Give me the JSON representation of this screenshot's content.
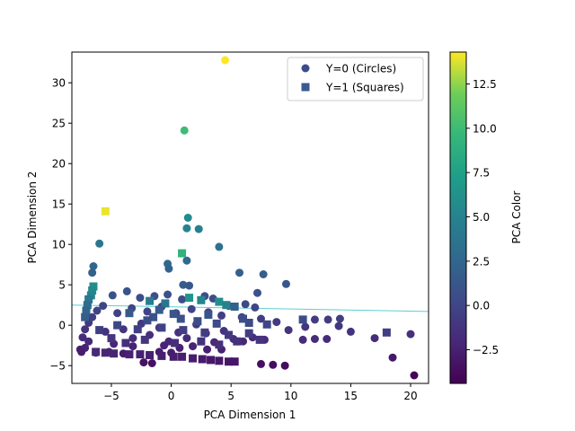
{
  "chart_data": {
    "type": "scatter",
    "title": "",
    "xlabel": "PCA Dimension 1",
    "ylabel": "PCA Dimension 2",
    "xlim": [
      -8.3,
      21.5
    ],
    "ylim": [
      -7.2,
      33.8
    ],
    "xticks": [
      -5,
      0,
      5,
      10,
      15,
      20
    ],
    "yticks": [
      -5,
      0,
      5,
      10,
      15,
      20,
      25,
      30
    ],
    "xtick_labels": [
      "−5",
      "0",
      "5",
      "10",
      "15",
      "20"
    ],
    "ytick_labels": [
      "−5",
      "0",
      "5",
      "10",
      "15",
      "20",
      "25",
      "30"
    ],
    "colorbar": {
      "label": "PCA Color",
      "range": [
        -4.4,
        14.3
      ],
      "ticks": [
        -2.5,
        0,
        2.5,
        5,
        7.5,
        10,
        12.5
      ],
      "tick_labels": [
        "−2.5",
        "0.0",
        "2.5",
        "5.0",
        "7.5",
        "10.0",
        "12.5"
      ]
    },
    "legend": {
      "placement": "top-right",
      "entries": [
        {
          "label": "Y=0 (Circles)",
          "marker": "circle",
          "color": "#3b4c8c"
        },
        {
          "label": "Y=1 (Squares)",
          "marker": "square",
          "color": "#3b5a91"
        }
      ]
    },
    "trend_line": {
      "color": "#5ecfd0",
      "points": [
        [
          -8.3,
          2.5
        ],
        [
          21.5,
          1.7
        ]
      ]
    },
    "series": [
      {
        "name": "Y=0 (Circles)",
        "marker": "circle",
        "points": [
          [
            4.5,
            32.8,
            14.3
          ],
          [
            1.1,
            24.1,
            10.0
          ],
          [
            1.4,
            13.3,
            5.8
          ],
          [
            1.3,
            12.0,
            5.0
          ],
          [
            2.3,
            11.9,
            4.8
          ],
          [
            -6.0,
            10.1,
            3.8
          ],
          [
            4.0,
            9.7,
            3.5
          ],
          [
            -6.5,
            7.3,
            2.4
          ],
          [
            -6.6,
            6.5,
            2.0
          ],
          [
            -0.3,
            7.6,
            2.6
          ],
          [
            -0.2,
            7.0,
            2.2
          ],
          [
            1.3,
            8.0,
            2.8
          ],
          [
            5.7,
            6.5,
            2.0
          ],
          [
            7.7,
            6.3,
            1.8
          ],
          [
            9.6,
            5.1,
            1.2
          ],
          [
            7.2,
            4.0,
            0.9
          ],
          [
            1.0,
            5.0,
            1.6
          ],
          [
            1.5,
            4.9,
            1.4
          ],
          [
            -4.9,
            3.7,
            0.8
          ],
          [
            -3.7,
            4.2,
            1.0
          ],
          [
            -2.6,
            3.4,
            0.6
          ],
          [
            -1.4,
            3.6,
            0.7
          ],
          [
            -0.3,
            3.8,
            0.8
          ],
          [
            0.9,
            3.2,
            0.5
          ],
          [
            2.8,
            3.6,
            0.6
          ],
          [
            3.5,
            3.3,
            0.5
          ],
          [
            4.8,
            2.4,
            0.1
          ],
          [
            6.2,
            2.6,
            0.2
          ],
          [
            7.0,
            2.2,
            0.0
          ],
          [
            -6.2,
            1.8,
            -0.2
          ],
          [
            -5.7,
            2.4,
            0.0
          ],
          [
            -4.5,
            1.5,
            -0.3
          ],
          [
            -3.3,
            2.1,
            -0.1
          ],
          [
            -2.0,
            1.7,
            -0.2
          ],
          [
            -0.8,
            2.3,
            0.0
          ],
          [
            0.4,
            1.5,
            -0.3
          ],
          [
            1.7,
            2.0,
            -0.1
          ],
          [
            3.1,
            1.6,
            -0.2
          ],
          [
            4.2,
            1.2,
            -0.4
          ],
          [
            5.9,
            1.0,
            -0.5
          ],
          [
            7.5,
            0.8,
            -0.6
          ],
          [
            8.8,
            0.4,
            -0.8
          ],
          [
            9.8,
            -0.6,
            -1.2
          ],
          [
            11.2,
            -0.2,
            -1.0
          ],
          [
            12.0,
            0.7,
            -0.6
          ],
          [
            13.1,
            0.7,
            -0.6
          ],
          [
            14.1,
            0.8,
            -0.5
          ],
          [
            14.0,
            -0.1,
            -1.0
          ],
          [
            15.0,
            -0.8,
            -1.3
          ],
          [
            17.0,
            -1.6,
            -1.7
          ],
          [
            20.0,
            -1.1,
            -1.5
          ],
          [
            18.5,
            -4.0,
            -3.0
          ],
          [
            20.3,
            -6.2,
            -4.2
          ],
          [
            11.0,
            -1.8,
            -1.8
          ],
          [
            12.0,
            -1.7,
            -1.8
          ],
          [
            13.0,
            -1.7,
            -1.8
          ],
          [
            7.5,
            -4.8,
            -3.5
          ],
          [
            8.5,
            -4.9,
            -3.6
          ],
          [
            9.5,
            -5.0,
            -3.7
          ],
          [
            6.0,
            -2.0,
            -2.0
          ],
          [
            6.8,
            -1.5,
            -1.7
          ],
          [
            7.8,
            -1.8,
            -1.8
          ],
          [
            -7.2,
            -2.8,
            -2.4
          ],
          [
            -7.4,
            -1.5,
            -1.7
          ],
          [
            -7.2,
            -0.5,
            -1.2
          ],
          [
            -6.9,
            0.3,
            -0.8
          ],
          [
            -6.6,
            1.0,
            -0.5
          ],
          [
            -6.9,
            -2.0,
            -2.0
          ],
          [
            -5.5,
            -0.8,
            -1.3
          ],
          [
            -4.8,
            -2.3,
            -2.1
          ],
          [
            -4.0,
            -0.5,
            -1.2
          ],
          [
            -3.2,
            -1.6,
            -1.7
          ],
          [
            -2.5,
            0.2,
            -0.9
          ],
          [
            -1.8,
            -1.2,
            -1.5
          ],
          [
            -1.0,
            -0.3,
            -1.1
          ],
          [
            -0.2,
            -2.0,
            -2.0
          ],
          [
            0.6,
            -0.9,
            -1.4
          ],
          [
            1.3,
            -1.6,
            -1.7
          ],
          [
            2.1,
            0.1,
            -0.9
          ],
          [
            2.9,
            -1.0,
            -1.5
          ],
          [
            3.6,
            -2.1,
            -2.0
          ],
          [
            4.4,
            -0.7,
            -1.3
          ],
          [
            5.2,
            -1.7,
            -1.8
          ],
          [
            -2.3,
            -4.6,
            -3.4
          ],
          [
            -1.6,
            -4.7,
            -3.5
          ],
          [
            -1.0,
            -3.3,
            -2.7
          ],
          [
            0.0,
            -3.4,
            -2.7
          ],
          [
            -4.0,
            -3.5,
            -2.8
          ],
          [
            -5.2,
            -3.3,
            -2.7
          ],
          [
            -6.3,
            -3.4,
            -2.7
          ],
          [
            -3.2,
            -2.6,
            -2.3
          ],
          [
            -0.6,
            -2.5,
            -2.3
          ],
          [
            0.7,
            -2.8,
            -2.4
          ],
          [
            1.8,
            -2.6,
            -2.3
          ],
          [
            3.0,
            -3.0,
            -2.5
          ],
          [
            4.2,
            -3.0,
            -2.5
          ],
          [
            -7.6,
            -3.0,
            -2.5
          ],
          [
            -7.5,
            -3.3,
            -2.7
          ]
        ]
      },
      {
        "name": "Y=1 (Squares)",
        "marker": "square",
        "points": [
          [
            -5.5,
            14.1,
            14.0
          ],
          [
            0.9,
            8.9,
            9.2
          ],
          [
            -6.5,
            4.8,
            6.0
          ],
          [
            -6.6,
            4.3,
            5.6
          ],
          [
            -6.7,
            3.7,
            5.2
          ],
          [
            1.5,
            3.4,
            6.5
          ],
          [
            2.5,
            3.1,
            5.3
          ],
          [
            4.0,
            2.9,
            6.0
          ],
          [
            4.6,
            2.5,
            5.0
          ],
          [
            -1.8,
            3.0,
            4.5
          ],
          [
            -0.5,
            2.7,
            3.8
          ],
          [
            -6.9,
            3.2,
            4.0
          ],
          [
            -7.0,
            2.5,
            3.0
          ],
          [
            -7.1,
            1.8,
            2.4
          ],
          [
            -7.2,
            1.0,
            1.8
          ],
          [
            5.3,
            2.3,
            2.2
          ],
          [
            -3.5,
            1.5,
            1.5
          ],
          [
            -1.5,
            1.0,
            1.0
          ],
          [
            0.8,
            0.8,
            0.8
          ],
          [
            2.2,
            0.5,
            0.5
          ],
          [
            3.8,
            0.2,
            0.3
          ],
          [
            6.5,
            0.3,
            0.2
          ],
          [
            8.0,
            0.1,
            0.0
          ],
          [
            11.0,
            0.7,
            0.4
          ],
          [
            18.0,
            -0.9,
            -0.5
          ],
          [
            -4.5,
            0.0,
            0.0
          ],
          [
            -2.8,
            -0.5,
            -0.4
          ],
          [
            -0.8,
            -0.3,
            -0.3
          ],
          [
            1.0,
            -0.6,
            -0.4
          ],
          [
            2.8,
            -0.9,
            -0.6
          ],
          [
            4.8,
            -1.2,
            -0.8
          ],
          [
            6.5,
            -1.0,
            -0.7
          ],
          [
            7.4,
            -1.8,
            -1.2
          ],
          [
            -6.0,
            -0.6,
            -0.5
          ],
          [
            -5.0,
            -1.6,
            -1.1
          ],
          [
            -3.8,
            -2.2,
            -1.5
          ],
          [
            -2.2,
            -1.8,
            -1.2
          ],
          [
            0.3,
            -2.2,
            -1.5
          ],
          [
            2.5,
            -2.0,
            -1.4
          ],
          [
            4.0,
            -2.4,
            -1.6
          ],
          [
            5.5,
            -2.0,
            -1.4
          ],
          [
            -6.3,
            -3.3,
            -2.0
          ],
          [
            -5.5,
            -3.4,
            -2.2
          ],
          [
            -4.8,
            -3.5,
            -2.3
          ],
          [
            -3.5,
            -3.6,
            -2.4
          ],
          [
            -2.6,
            -3.6,
            -2.5
          ],
          [
            -1.8,
            -3.7,
            -2.5
          ],
          [
            -0.8,
            -3.8,
            -2.6
          ],
          [
            0.2,
            -3.9,
            -2.7
          ],
          [
            0.9,
            -3.9,
            -2.7
          ],
          [
            1.8,
            -4.1,
            -2.8
          ],
          [
            2.6,
            -4.2,
            -2.9
          ],
          [
            3.3,
            -4.3,
            -3.0
          ],
          [
            4.0,
            -4.4,
            -3.0
          ],
          [
            4.8,
            -4.5,
            -3.1
          ],
          [
            5.3,
            -4.5,
            -3.1
          ],
          [
            6.0,
            0.8,
            0.6
          ],
          [
            -1.0,
            1.9,
            1.6
          ],
          [
            0.2,
            1.4,
            1.2
          ],
          [
            -2.0,
            0.6,
            0.6
          ],
          [
            3.1,
            1.3,
            1.1
          ]
        ]
      }
    ]
  }
}
